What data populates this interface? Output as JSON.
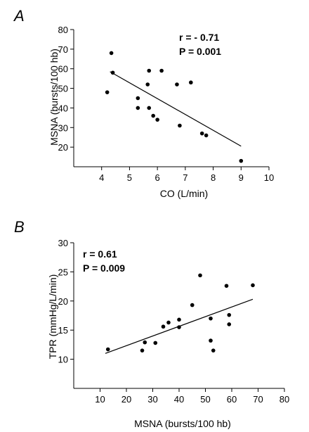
{
  "chart_data": [
    {
      "panel_label": "A",
      "type": "scatter",
      "xlabel": "CO (L/min)",
      "ylabel": "MSNA (bursts/100 hb)",
      "xlim": [
        3,
        10
      ],
      "ylim": [
        10,
        80
      ],
      "xticks": [
        4,
        5,
        6,
        7,
        8,
        9,
        10
      ],
      "yticks": [
        20,
        30,
        40,
        50,
        60,
        70,
        80
      ],
      "annotations": [
        "r = - 0.71",
        "P = 0.001"
      ],
      "regression_line": {
        "x": [
          4.3,
          9.0
        ],
        "y": [
          58.5,
          20.5
        ]
      },
      "points": [
        {
          "x": 4.2,
          "y": 48
        },
        {
          "x": 4.35,
          "y": 68
        },
        {
          "x": 4.4,
          "y": 58
        },
        {
          "x": 5.3,
          "y": 45
        },
        {
          "x": 5.3,
          "y": 40
        },
        {
          "x": 5.7,
          "y": 59
        },
        {
          "x": 5.65,
          "y": 52
        },
        {
          "x": 5.7,
          "y": 40
        },
        {
          "x": 5.85,
          "y": 36
        },
        {
          "x": 6.0,
          "y": 34
        },
        {
          "x": 6.15,
          "y": 59
        },
        {
          "x": 6.7,
          "y": 52
        },
        {
          "x": 6.8,
          "y": 31
        },
        {
          "x": 7.2,
          "y": 53
        },
        {
          "x": 7.6,
          "y": 27
        },
        {
          "x": 7.75,
          "y": 26
        },
        {
          "x": 9.0,
          "y": 13
        }
      ]
    },
    {
      "panel_label": "B",
      "type": "scatter",
      "xlabel": "MSNA (bursts/100 hb)",
      "ylabel": "TPR (mmHg/L/min)",
      "xlim": [
        0,
        80
      ],
      "ylim": [
        5,
        30
      ],
      "xticks": [
        10,
        20,
        30,
        40,
        50,
        60,
        70,
        80
      ],
      "yticks": [
        10,
        15,
        20,
        25,
        30
      ],
      "annotations": [
        "r = 0.61",
        "P = 0.009"
      ],
      "regression_line": {
        "x": [
          12,
          68
        ],
        "y": [
          11.0,
          20.3
        ]
      },
      "points": [
        {
          "x": 13,
          "y": 11.7
        },
        {
          "x": 26,
          "y": 11.5
        },
        {
          "x": 27,
          "y": 12.9
        },
        {
          "x": 31,
          "y": 12.8
        },
        {
          "x": 34,
          "y": 15.6
        },
        {
          "x": 36,
          "y": 16.3
        },
        {
          "x": 40,
          "y": 16.8
        },
        {
          "x": 40,
          "y": 15.5
        },
        {
          "x": 45,
          "y": 19.3
        },
        {
          "x": 48,
          "y": 24.4
        },
        {
          "x": 52,
          "y": 17.0
        },
        {
          "x": 52,
          "y": 13.2
        },
        {
          "x": 53,
          "y": 11.5
        },
        {
          "x": 58,
          "y": 22.6
        },
        {
          "x": 59,
          "y": 17.6
        },
        {
          "x": 59,
          "y": 16.0
        },
        {
          "x": 68,
          "y": 22.7
        }
      ]
    }
  ]
}
